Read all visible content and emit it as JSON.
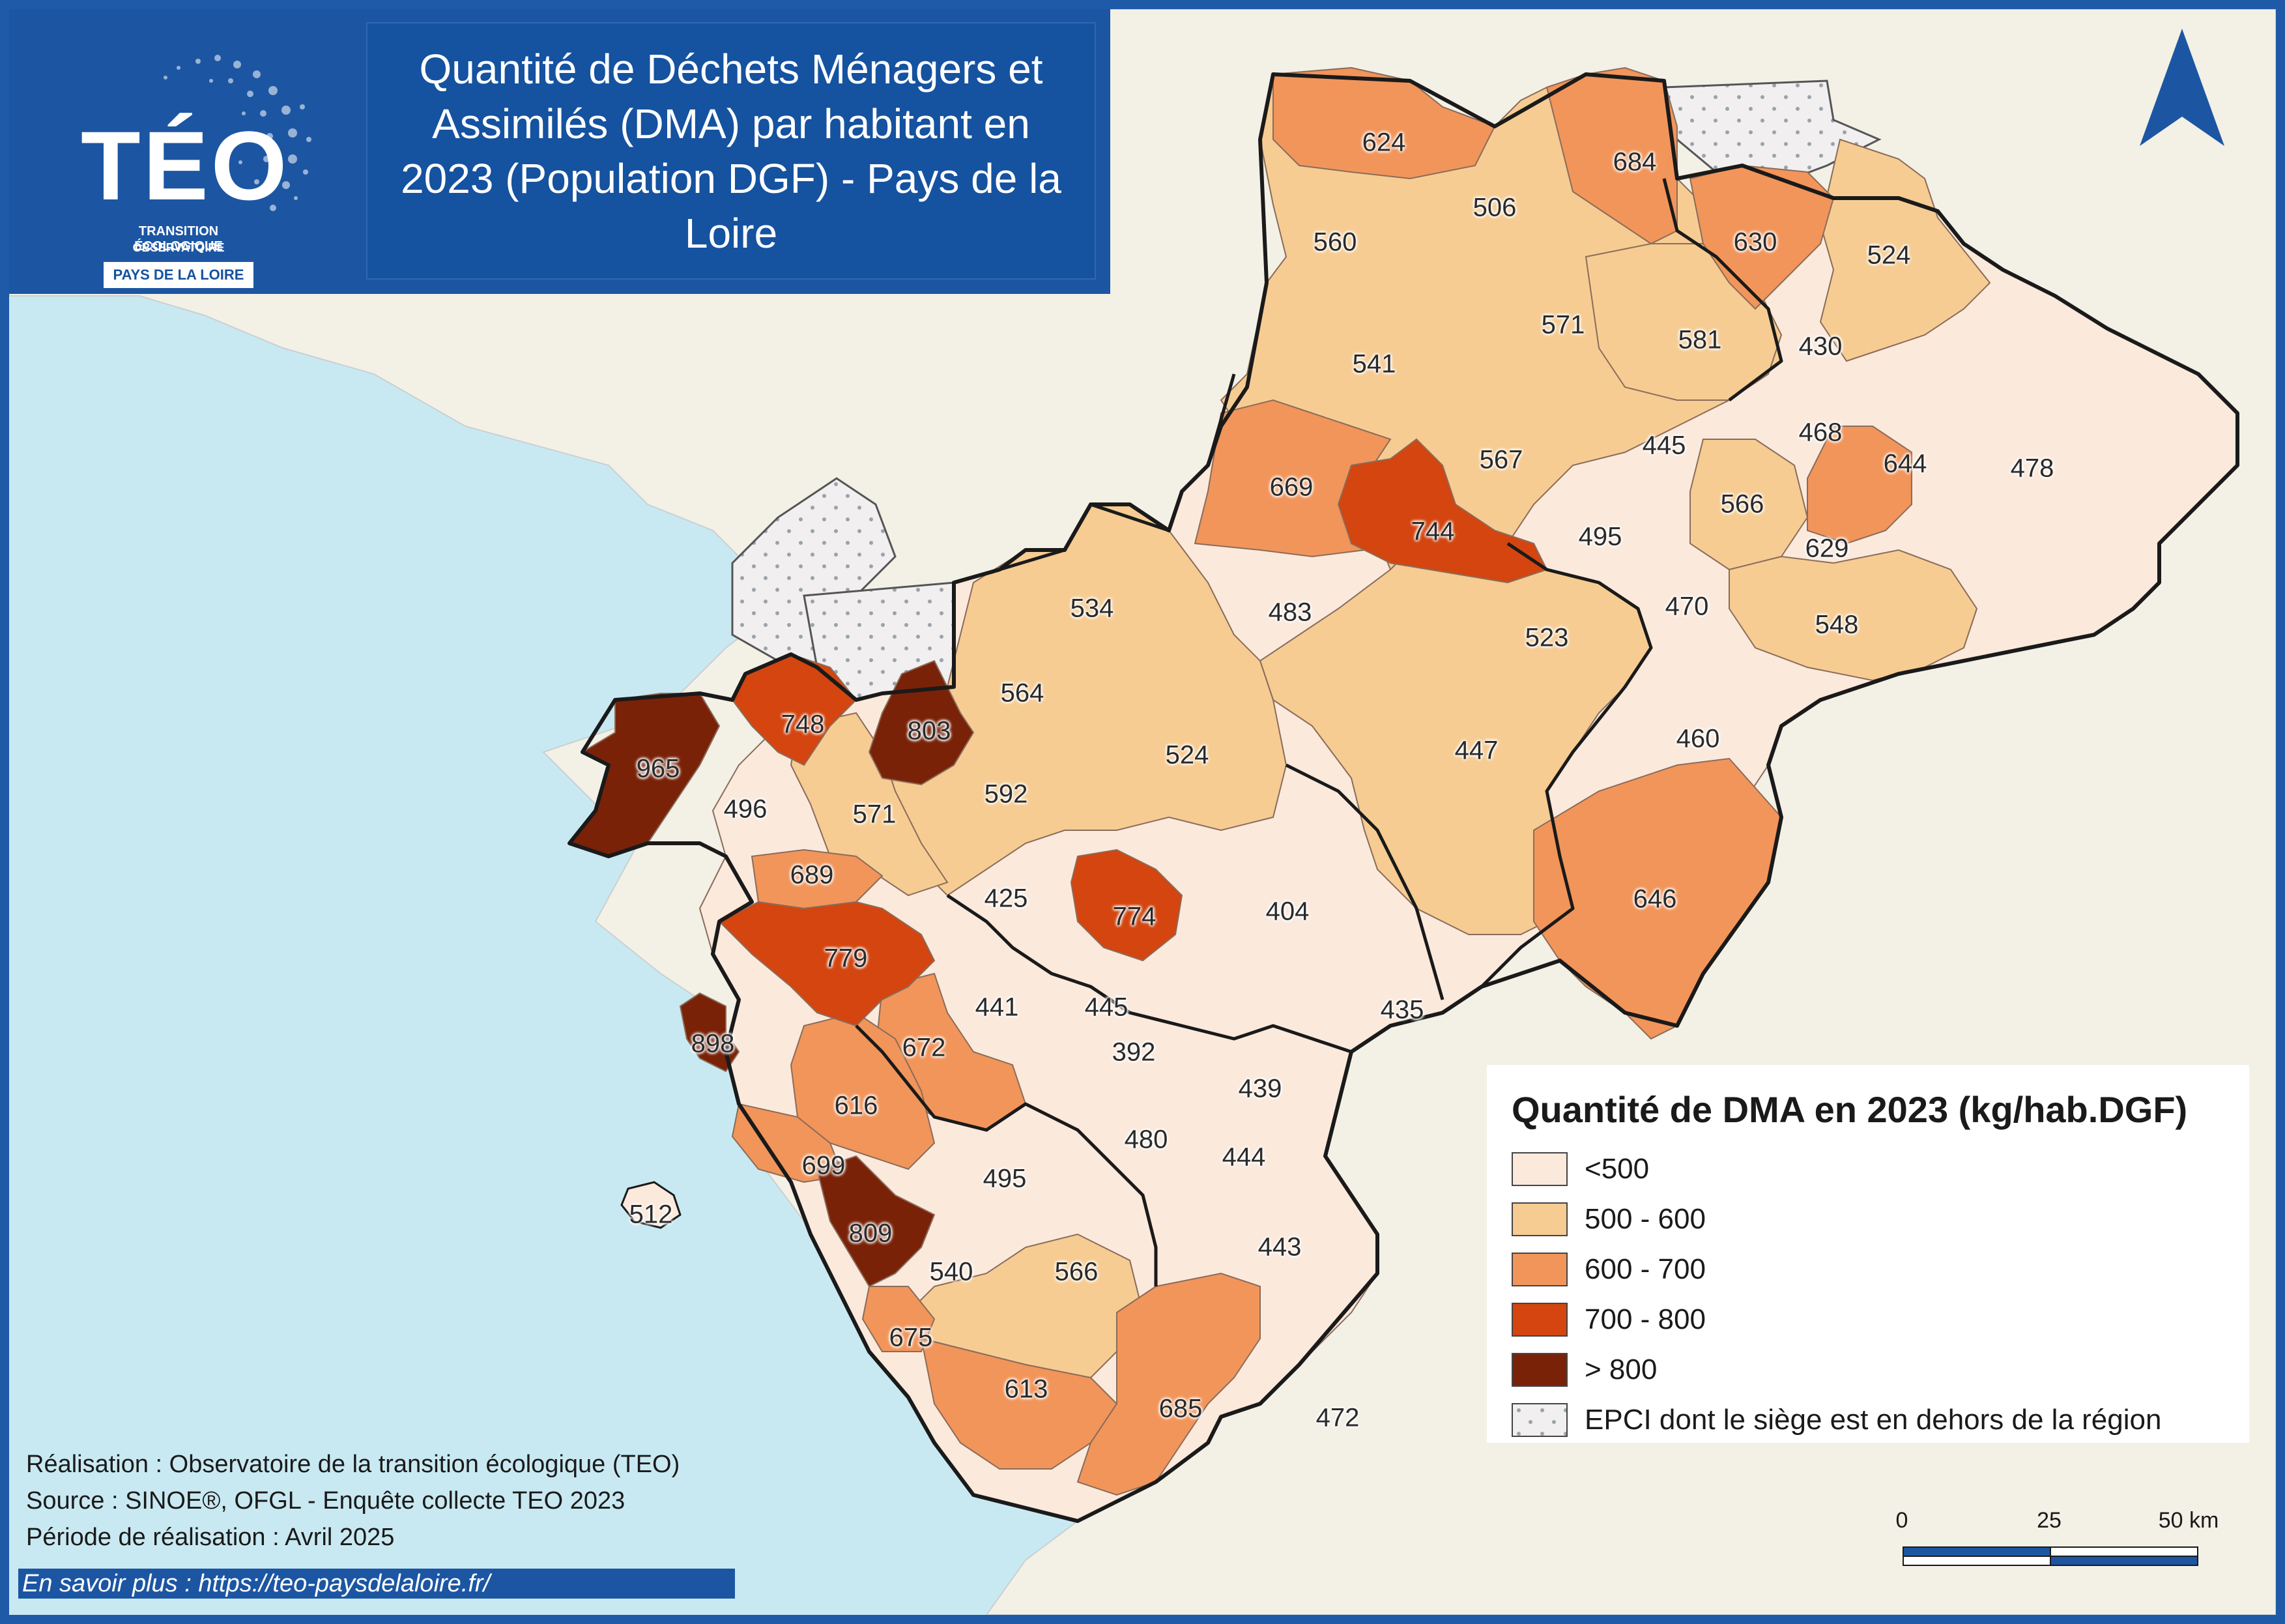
{
  "title": "Quantité de Déchets Ménagers et Assimilés (DMA) par habitant en 2023 (Population DGF) - Pays de la Loire",
  "logo": {
    "word": "TÉO",
    "line1": "TRANSITION ÉCOLOGIQUE",
    "line2": "OBSERVATOIRE",
    "badge": "PAYS DE LA LOIRE"
  },
  "legend": {
    "title": "Quantité de DMA en 2023 (kg/hab.DGF)",
    "classes": [
      {
        "label": "<500",
        "color": "#fbe9dc"
      },
      {
        "label": "500 - 600",
        "color": "#f6cc93"
      },
      {
        "label": "600 - 700",
        "color": "#f2955a"
      },
      {
        "label": "700 - 800",
        "color": "#d44510"
      },
      {
        "label": "> 800",
        "color": "#7a2208"
      },
      {
        "label": "EPCI dont le siège est en dehors de la région",
        "color": "#f1efef"
      }
    ]
  },
  "credits": [
    "Réalisation : Observatoire de la transition écologique (TEO)",
    "Source : SINOE®, OFGL - Enquête collecte TEO 2023",
    "Période de réalisation : Avril 2025"
  ],
  "link": "En savoir plus : https://teo-paysdelaloire.fr/",
  "scale": {
    "labels": [
      "0",
      "25",
      "50 km"
    ]
  },
  "colors": {
    "sea": "#c9e9f2",
    "land": "#f3f0e6",
    "frame": "#1f5aa8",
    "border": "#1a1a1a"
  },
  "map_values": [
    "624",
    "506",
    "684",
    "560",
    "630",
    "524",
    "571",
    "541",
    "581",
    "430",
    "478",
    "445",
    "468",
    "644",
    "669",
    "567",
    "744",
    "566",
    "495",
    "629",
    "483",
    "470",
    "548",
    "534",
    "523",
    "564",
    "748",
    "803",
    "524",
    "447",
    "460",
    "965",
    "496",
    "571",
    "592",
    "689",
    "425",
    "774",
    "404",
    "646",
    "779",
    "441",
    "445",
    "435",
    "898",
    "672",
    "392",
    "439",
    "616",
    "480",
    "444",
    "699",
    "495",
    "512",
    "809",
    "443",
    "540",
    "566",
    "675",
    "613",
    "685",
    "472"
  ]
}
